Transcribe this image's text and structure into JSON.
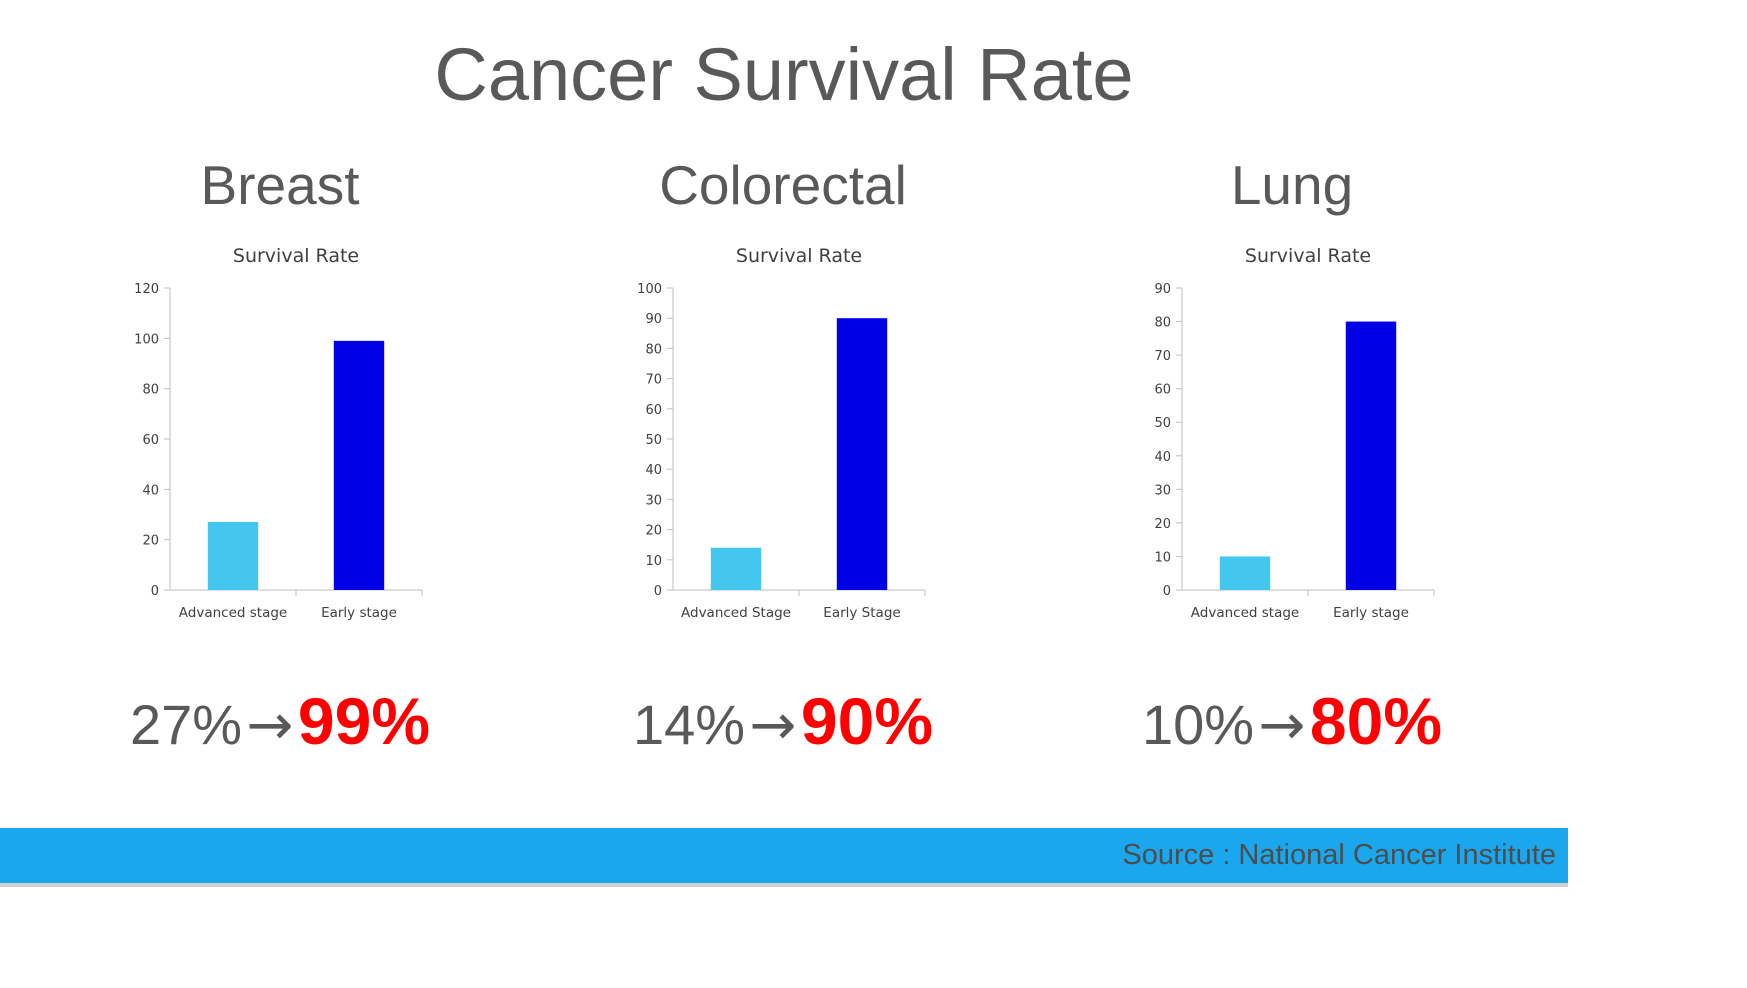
{
  "slide": {
    "title": "Cancer Survival Rate"
  },
  "footer": {
    "source": "Source : National Cancer Institute"
  },
  "colors": {
    "advanced": "#43c6f0",
    "early": "#0000e6",
    "highlight": "#ff0000",
    "footer_bar": "#1aa7ee"
  },
  "panels": [
    {
      "name": "Breast",
      "from_text": "27%",
      "arrow": "→",
      "to_text": "99%"
    },
    {
      "name": "Colorectal",
      "from_text": "14%",
      "arrow": "→",
      "to_text": "90%"
    },
    {
      "name": "Lung",
      "from_text": "10%",
      "arrow": "→",
      "to_text": "80%"
    }
  ],
  "chart_data": [
    {
      "type": "bar",
      "title": "Survival Rate",
      "categories": [
        "Advanced stage",
        "Early stage"
      ],
      "values": [
        27,
        99
      ],
      "ylim": [
        0,
        120
      ],
      "yticks": [
        0,
        20,
        40,
        60,
        80,
        100,
        120
      ],
      "grid": false,
      "legend": "none"
    },
    {
      "type": "bar",
      "title": "Survival Rate",
      "categories": [
        "Advanced Stage",
        "Early Stage"
      ],
      "values": [
        14,
        90
      ],
      "ylim": [
        0,
        100
      ],
      "yticks": [
        0,
        10,
        20,
        30,
        40,
        50,
        60,
        70,
        80,
        90,
        100
      ],
      "grid": false,
      "legend": "none"
    },
    {
      "type": "bar",
      "title": "Survival Rate",
      "categories": [
        "Advanced stage",
        "Early stage"
      ],
      "values": [
        10,
        80
      ],
      "ylim": [
        0,
        90
      ],
      "yticks": [
        0,
        10,
        20,
        30,
        40,
        50,
        60,
        70,
        80,
        90
      ],
      "grid": false,
      "legend": "none"
    }
  ]
}
